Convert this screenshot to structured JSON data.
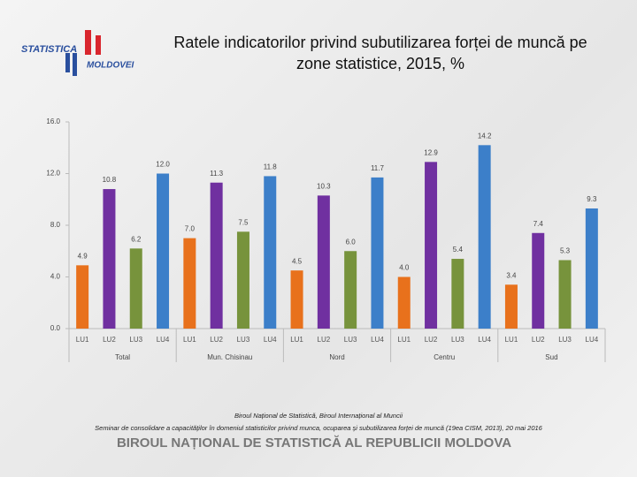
{
  "logo": {
    "line1": "STATISTICA",
    "line2": "MOLDOVEI"
  },
  "chart_data": {
    "type": "bar",
    "title": "Ratele indicatorilor privind subutilizarea forței de muncă pe zone statistice, 2015, %",
    "categories": [
      "Total",
      "Mun. Chisinau",
      "Nord",
      "Centru",
      "Sud"
    ],
    "series": [
      {
        "name": "LU1",
        "color": "#e8711c",
        "values": [
          4.9,
          7.0,
          4.5,
          4.0,
          3.4
        ],
        "value_labels": [
          "4.9",
          "7.0",
          "4.5",
          "4.0",
          "3.4"
        ]
      },
      {
        "name": "LU2",
        "color": "#7030a0",
        "values": [
          10.8,
          11.3,
          10.3,
          12.9,
          7.4
        ],
        "value_labels": [
          "10.8",
          "11.3",
          "10.3",
          "12.9",
          "7.4"
        ]
      },
      {
        "name": "LU3",
        "color": "#77933c",
        "values": [
          6.2,
          7.5,
          6.0,
          5.4,
          5.3
        ],
        "value_labels": [
          "6.2",
          "7.5",
          "6.0",
          "5.4",
          "5.3"
        ]
      },
      {
        "name": "LU4",
        "color": "#3c7fc9",
        "values": [
          12.0,
          11.8,
          11.7,
          14.2,
          9.3
        ],
        "value_labels": [
          "12.0",
          "11.8",
          "11.7",
          "14.2",
          "9.3"
        ]
      }
    ],
    "ylim": [
      0,
      16
    ],
    "yticks": [
      {
        "value": 0,
        "label": "0.0"
      },
      {
        "value": 4,
        "label": "4.0"
      },
      {
        "value": 8,
        "label": "8.0"
      },
      {
        "value": 12,
        "label": "12.0"
      },
      {
        "value": 16,
        "label": "16.0"
      }
    ],
    "grid": false
  },
  "footer": {
    "line1": "Biroul Național de Statistică, Biroul Internațional al Muncii",
    "line2": "Seminar de consolidare a capacităților în domeniul statisticilor privind munca, ocuparea și subutilizarea forței de muncă (19ea CISM, 2013), 20 mai 2016",
    "org": "BIROUL NAȚIONAL DE STATISTICĂ AL REPUBLICII MOLDOVA"
  }
}
